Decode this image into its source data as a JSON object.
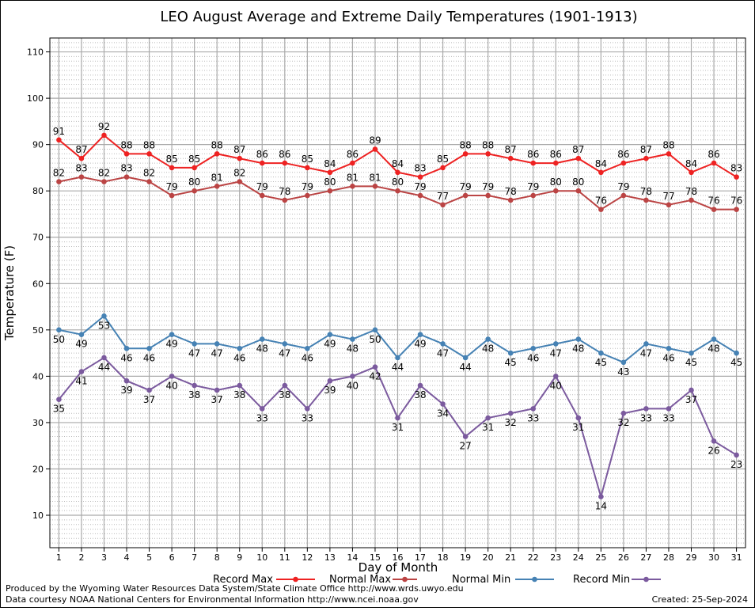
{
  "chart_data": {
    "type": "line",
    "title": "LEO August Average and Extreme Daily Temperatures (1901-1913)",
    "xlabel": "Day of Month",
    "ylabel": "Temperature (F)",
    "x": [
      1,
      2,
      3,
      4,
      5,
      6,
      7,
      8,
      9,
      10,
      11,
      12,
      13,
      14,
      15,
      16,
      17,
      18,
      19,
      20,
      21,
      22,
      23,
      24,
      25,
      26,
      27,
      28,
      29,
      30,
      31
    ],
    "xlim": [
      0.6,
      31.4
    ],
    "ylim": [
      3,
      113
    ],
    "yticks": [
      10,
      20,
      30,
      40,
      50,
      60,
      70,
      80,
      90,
      100,
      110
    ],
    "grid": true,
    "legend_position": "bottom",
    "series": [
      {
        "name": "Record Max",
        "color": "#ee2222",
        "label_position": "above",
        "values": [
          91,
          87,
          92,
          88,
          88,
          85,
          85,
          88,
          87,
          86,
          86,
          85,
          84,
          86,
          89,
          84,
          83,
          85,
          88,
          88,
          87,
          86,
          86,
          87,
          84,
          86,
          87,
          88,
          84,
          86,
          83
        ]
      },
      {
        "name": "Normal Max",
        "color": "#bb4444",
        "label_position": "above",
        "values": [
          82,
          83,
          82,
          83,
          82,
          79,
          80,
          81,
          82,
          79,
          78,
          79,
          80,
          81,
          81,
          80,
          79,
          77,
          79,
          79,
          78,
          79,
          80,
          80,
          76,
          79,
          78,
          77,
          78,
          76,
          76
        ]
      },
      {
        "name": "Normal Min",
        "color": "#4682b4",
        "label_position": "below",
        "values": [
          50,
          49,
          53,
          46,
          46,
          49,
          47,
          47,
          46,
          48,
          47,
          46,
          49,
          48,
          50,
          44,
          49,
          47,
          44,
          48,
          45,
          46,
          47,
          48,
          45,
          43,
          47,
          46,
          45,
          48,
          45
        ]
      },
      {
        "name": "Record Min",
        "color": "#7b5a9e",
        "label_position": "below",
        "values": [
          35,
          41,
          44,
          39,
          37,
          40,
          38,
          37,
          38,
          33,
          38,
          33,
          39,
          40,
          42,
          31,
          38,
          34,
          27,
          31,
          32,
          33,
          40,
          31,
          14,
          32,
          33,
          33,
          37,
          26,
          23
        ]
      }
    ]
  },
  "footer": {
    "producer": "Produced by the Wyoming Water Resources Data System/State Climate Office http://www.wrds.uwyo.edu",
    "courtesy": "Data courtesy NOAA National Centers for Environmental Information http://www.ncei.noaa.gov",
    "created": "Created:  25-Sep-2024"
  }
}
